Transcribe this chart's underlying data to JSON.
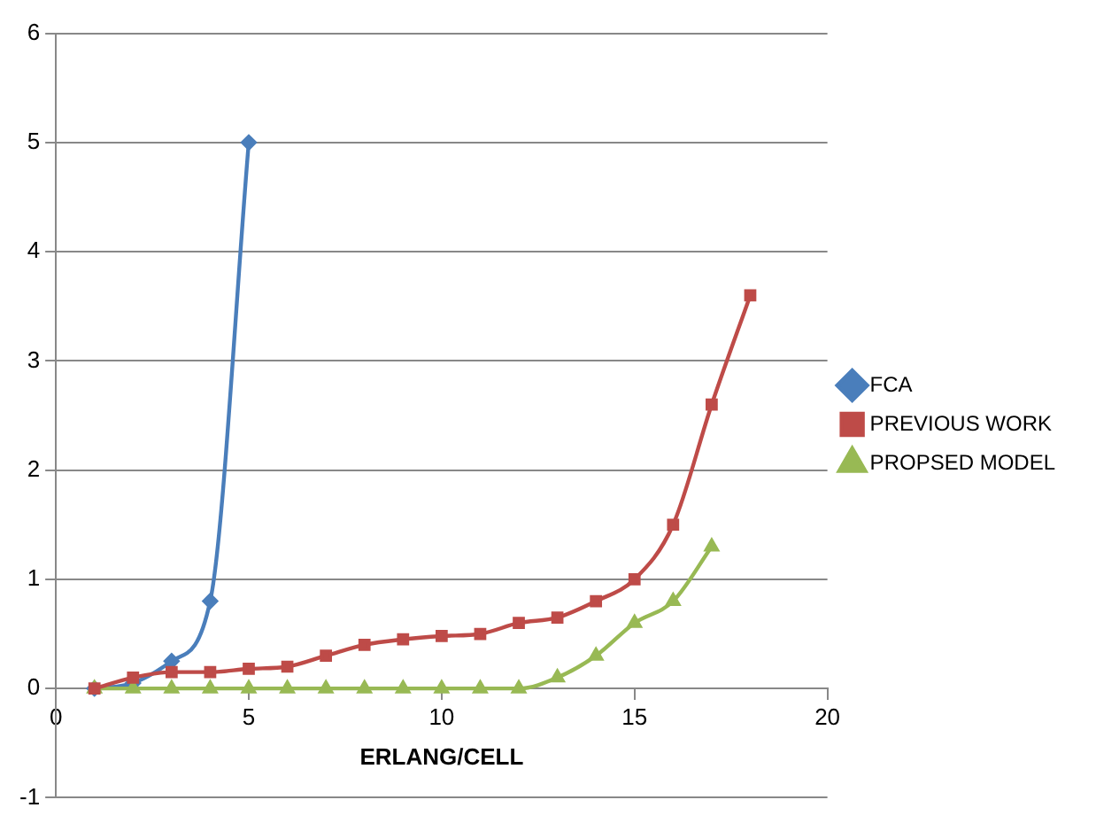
{
  "chart_data": {
    "type": "line",
    "xlabel": "ERLANG/CELL",
    "xlim": [
      0,
      20
    ],
    "xticks": [
      0,
      5,
      10,
      15,
      20
    ],
    "ylim": [
      -1,
      6
    ],
    "yticks": [
      -1,
      0,
      1,
      2,
      3,
      4,
      5,
      6
    ],
    "grid": "y",
    "legend": "right",
    "line_style": "solid",
    "series": [
      {
        "name": "FCA",
        "color": "#4a7ebb",
        "marker": "diamond",
        "x": [
          1,
          2,
          3,
          4,
          5
        ],
        "values": [
          0,
          0.05,
          0.25,
          0.8,
          5
        ]
      },
      {
        "name": "PREVIOUS WORK",
        "color": "#be4b48",
        "marker": "square",
        "x": [
          1,
          2,
          3,
          4,
          5,
          6,
          7,
          8,
          9,
          10,
          11,
          12,
          13,
          14,
          15,
          16,
          17,
          18
        ],
        "values": [
          0,
          0.1,
          0.15,
          0.15,
          0.18,
          0.2,
          0.3,
          0.4,
          0.45,
          0.48,
          0.5,
          0.6,
          0.65,
          0.8,
          1.0,
          1.5,
          2.6,
          3.6
        ]
      },
      {
        "name": "PROPSED MODEL",
        "color": "#98b954",
        "marker": "triangle",
        "x": [
          1,
          2,
          3,
          4,
          5,
          6,
          7,
          8,
          9,
          10,
          11,
          12,
          13,
          14,
          15,
          16,
          17
        ],
        "values": [
          0,
          0,
          0,
          0,
          0,
          0,
          0,
          0,
          0,
          0,
          0,
          0,
          0.1,
          0.3,
          0.6,
          0.8,
          1.3
        ]
      }
    ]
  }
}
